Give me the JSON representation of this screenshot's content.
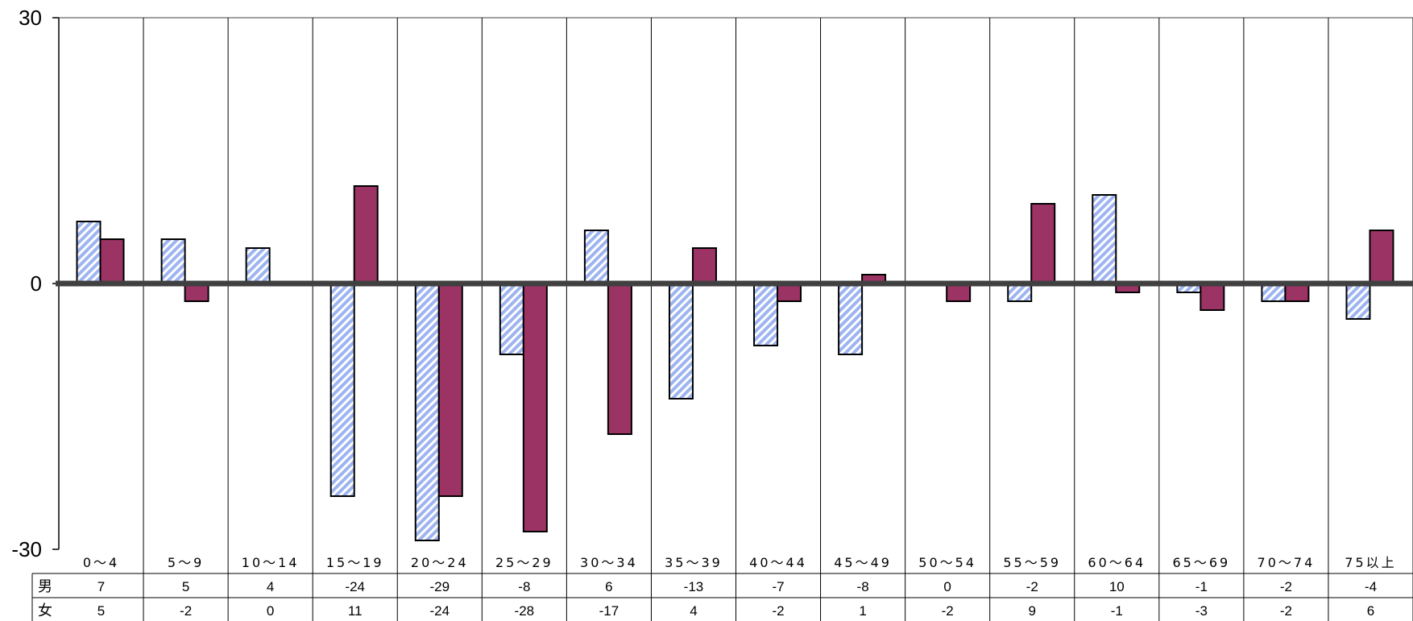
{
  "chart_data": {
    "type": "bar",
    "categories": [
      "0～4",
      "5～9",
      "10～14",
      "15～19",
      "20～24",
      "25～29",
      "30～34",
      "35～39",
      "40～44",
      "45～49",
      "50～54",
      "55～59",
      "60～64",
      "65～69",
      "70～74",
      "75以上"
    ],
    "series": [
      {
        "name": "男",
        "values": [
          7,
          5,
          4,
          -24,
          -29,
          -8,
          6,
          -13,
          -7,
          -8,
          0,
          -2,
          10,
          -1,
          -2,
          -4
        ],
        "fill": "#9db4f0",
        "pattern": "diagonal-hatch"
      },
      {
        "name": "女",
        "values": [
          5,
          -2,
          0,
          11,
          -24,
          -28,
          -17,
          4,
          -2,
          1,
          -2,
          9,
          -1,
          -3,
          -2,
          6
        ],
        "fill": "#9b3464"
      }
    ],
    "yticks": [
      "30",
      "0",
      "-30"
    ],
    "ylim": [
      -30,
      30
    ],
    "grid": "vertical category separators",
    "legend": "data table rows below axis",
    "table_rows": [
      {
        "label": "男",
        "values": [
          "7",
          "5",
          "4",
          "-24",
          "-29",
          "-8",
          "6",
          "-13",
          "-7",
          "-8",
          "0",
          "-2",
          "10",
          "-1",
          "-2",
          "-4"
        ]
      },
      {
        "label": "女",
        "values": [
          "5",
          "-2",
          "0",
          "11",
          "-24",
          "-28",
          "-17",
          "4",
          "-2",
          "1",
          "-2",
          "9",
          "-1",
          "-3",
          "-2",
          "6"
        ]
      }
    ]
  }
}
